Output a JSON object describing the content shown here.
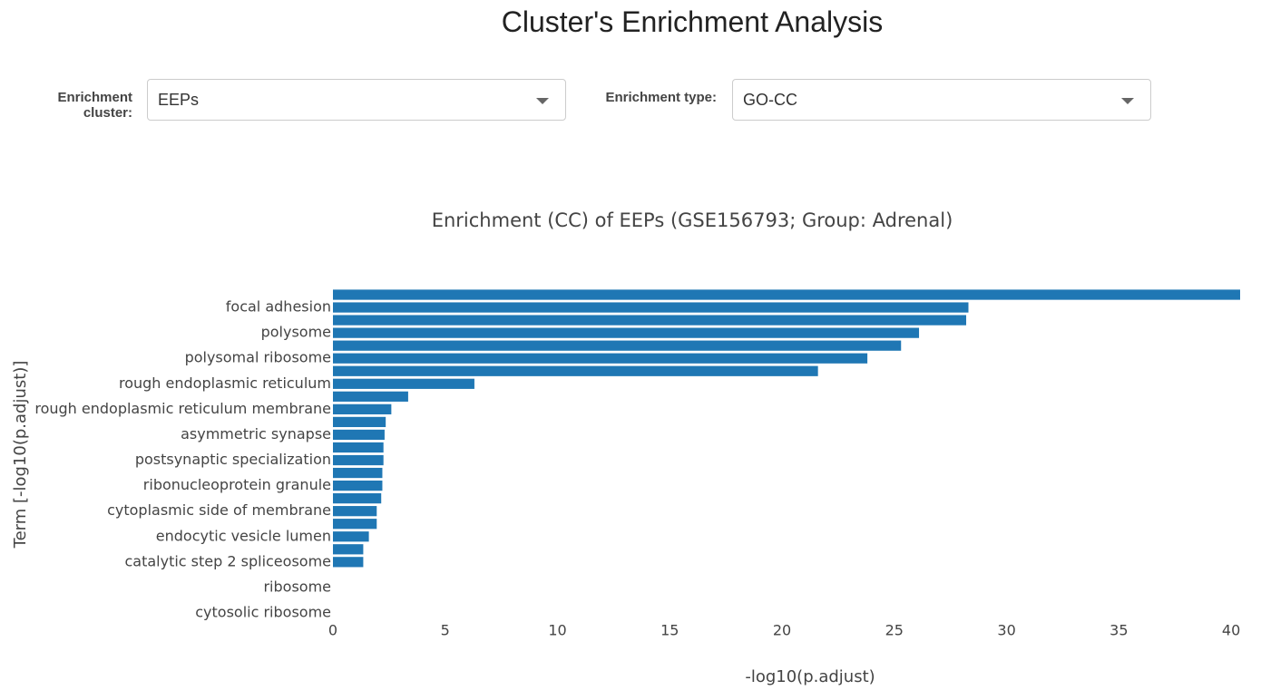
{
  "header": {
    "title": "Cluster's Enrichment Analysis"
  },
  "controls": [
    {
      "label": "Enrichment cluster:",
      "value": "EEPs"
    },
    {
      "label": "Enrichment type:",
      "value": "GO-CC"
    }
  ],
  "chart_data": {
    "type": "hbar",
    "title": "Enrichment (CC) of  EEPs (GSE156793; Group: Adrenal)",
    "x_label": "-log10(p.adjust)",
    "y_label": "Term [-log10(p.adjust)]",
    "categories": [
      null,
      "focal adhesion",
      null,
      "polysome",
      null,
      "polysomal ribosome",
      null,
      "rough endoplasmic reticulum",
      null,
      "rough endoplasmic reticulum membrane",
      null,
      "asymmetric synapse",
      null,
      "postsynaptic specialization",
      null,
      "ribonucleoprotein granule",
      null,
      "cytoplasmic side of membrane",
      null,
      "endocytic vesicle lumen",
      null,
      "catalytic step 2 spliceosome",
      null,
      "ribosome",
      null,
      "cytosolic ribosome"
    ],
    "values": [
      40.4,
      28.3,
      28.2,
      26.1,
      25.3,
      23.8,
      21.6,
      6.3,
      3.35,
      2.6,
      2.35,
      2.3,
      2.25,
      2.25,
      2.2,
      2.2,
      2.15,
      1.95,
      1.95,
      1.6,
      1.35,
      1.35,
      null,
      null,
      null,
      null
    ],
    "color": "#1f77b4",
    "xlim": [
      0,
      40.4
    ],
    "xticks": [
      0,
      5,
      10,
      15,
      20,
      25,
      30,
      35,
      40
    ],
    "grid": false
  }
}
